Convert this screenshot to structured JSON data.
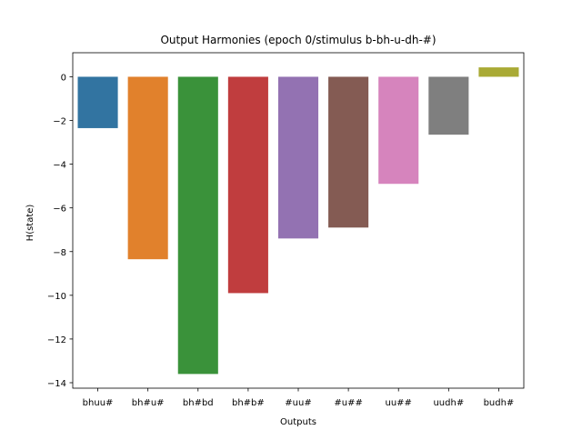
{
  "chart_data": {
    "type": "bar",
    "title": "Output Harmonies (epoch 0/stimulus b-bh-u-dh-#)",
    "xlabel": "Outputs",
    "ylabel": "H(state)",
    "categories": [
      "bhuu#",
      "bh#u#",
      "bh#bd",
      "bh#b#",
      "#uu#",
      "#u##",
      "uu##",
      "uudh#",
      "budh#"
    ],
    "values": [
      -2.35,
      -8.35,
      -13.6,
      -9.9,
      -7.4,
      -6.9,
      -4.9,
      -2.65,
      0.43
    ],
    "colors": [
      "#3274a1",
      "#e1812c",
      "#3a923a",
      "#c03d3e",
      "#9372b2",
      "#845b53",
      "#d684bd",
      "#7f7f7f",
      "#a9aa35"
    ],
    "ylim": [
      -14.25,
      1.1
    ],
    "yticks": [
      0,
      -2,
      -4,
      -6,
      -8,
      -10,
      -12,
      -14
    ],
    "grid": false,
    "legend": "none"
  }
}
